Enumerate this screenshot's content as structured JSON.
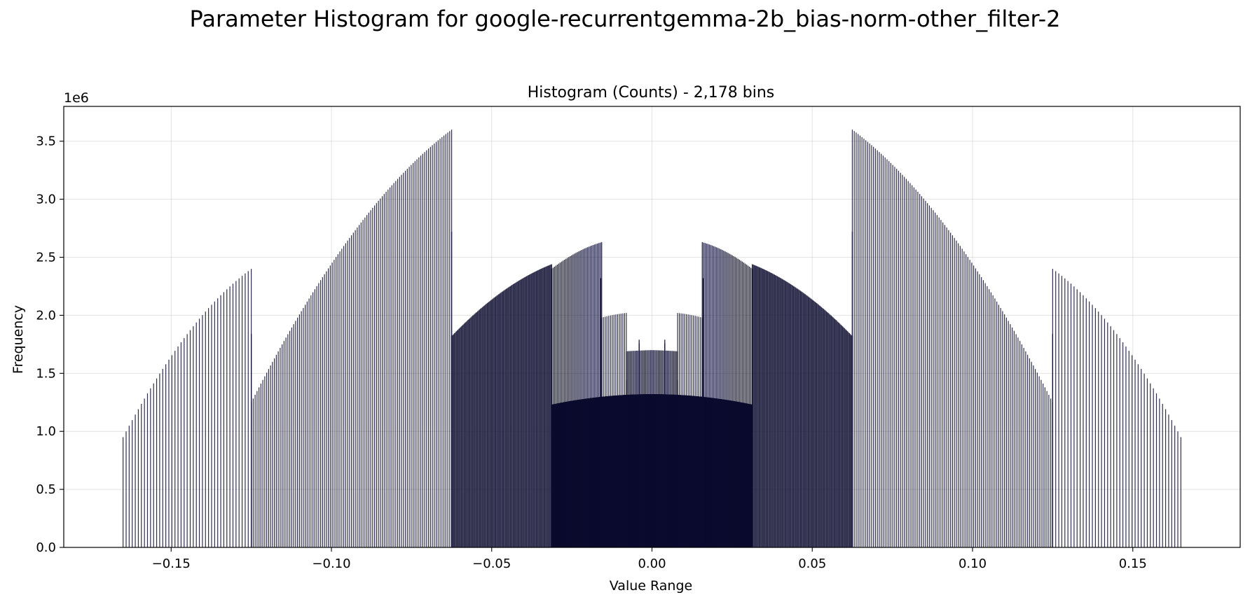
{
  "suptitle": "Parameter Histogram for google-recurrentgemma-2b_bias-norm-other_filter-2",
  "chart_data": {
    "type": "bar",
    "title": "Histogram (Counts) - 2,178 bins",
    "xlabel": "Value Range",
    "ylabel": "Frequency",
    "y_scale_label": "1e6",
    "xlim": [
      -0.1835,
      0.1835
    ],
    "ylim": [
      0,
      3.8
    ],
    "y_unit": 1000000,
    "x_ticks": [
      -0.15,
      -0.1,
      -0.05,
      0.0,
      0.05,
      0.1,
      0.15
    ],
    "x_tick_labels": [
      "−0.15",
      "−0.10",
      "−0.05",
      "0.00",
      "0.05",
      "0.10",
      "0.15"
    ],
    "y_ticks": [
      0.0,
      0.5,
      1.0,
      1.5,
      2.0,
      2.5,
      3.0,
      3.5
    ],
    "y_tick_labels": [
      "0.0",
      "0.5",
      "1.0",
      "1.5",
      "2.0",
      "2.5",
      "3.0",
      "3.5"
    ],
    "grid": true,
    "bar_color": "#0b0b2e",
    "bar_edge_color": "#0b0b2e",
    "segments": [
      {
        "x_start": 0.0,
        "x_end": 0.008,
        "y_start": 1.7,
        "y_end": 1.69,
        "step": 0.0004
      },
      {
        "x_start": 0.008,
        "x_end": 0.0157,
        "y_start": 2.02,
        "y_end": 1.98,
        "step": 0.00055
      },
      {
        "x_start": 0.0157,
        "x_end": 0.0313,
        "y_start": 2.63,
        "y_end": 2.4,
        "step": 0.00045
      },
      {
        "x_start": 0.0313,
        "x_end": 0.0625,
        "y_start": 2.44,
        "y_end": 1.82,
        "step": 0.0003
      },
      {
        "x_start": 0.0625,
        "x_end": 0.125,
        "y_start": 3.6,
        "y_end": 1.25,
        "step": 0.0006
      },
      {
        "x_start": 0.125,
        "x_end": 0.165,
        "y_start": 2.4,
        "y_end": 0.95,
        "step": 0.00095
      }
    ],
    "baseline_segments": [
      {
        "x_start": 0.0,
        "x_end": 0.0313,
        "y_start": 1.32,
        "y_end": 1.23
      }
    ],
    "spikes": [
      {
        "x": 0.0625,
        "y": 2.72
      },
      {
        "x": 0.125,
        "y": 1.84
      },
      {
        "x": 0.016,
        "y": 2.32
      },
      {
        "x": 0.008,
        "y": 1.44
      },
      {
        "x": -0.004,
        "y": 1.79
      },
      {
        "x": 0.004,
        "y": 1.76
      }
    ]
  }
}
